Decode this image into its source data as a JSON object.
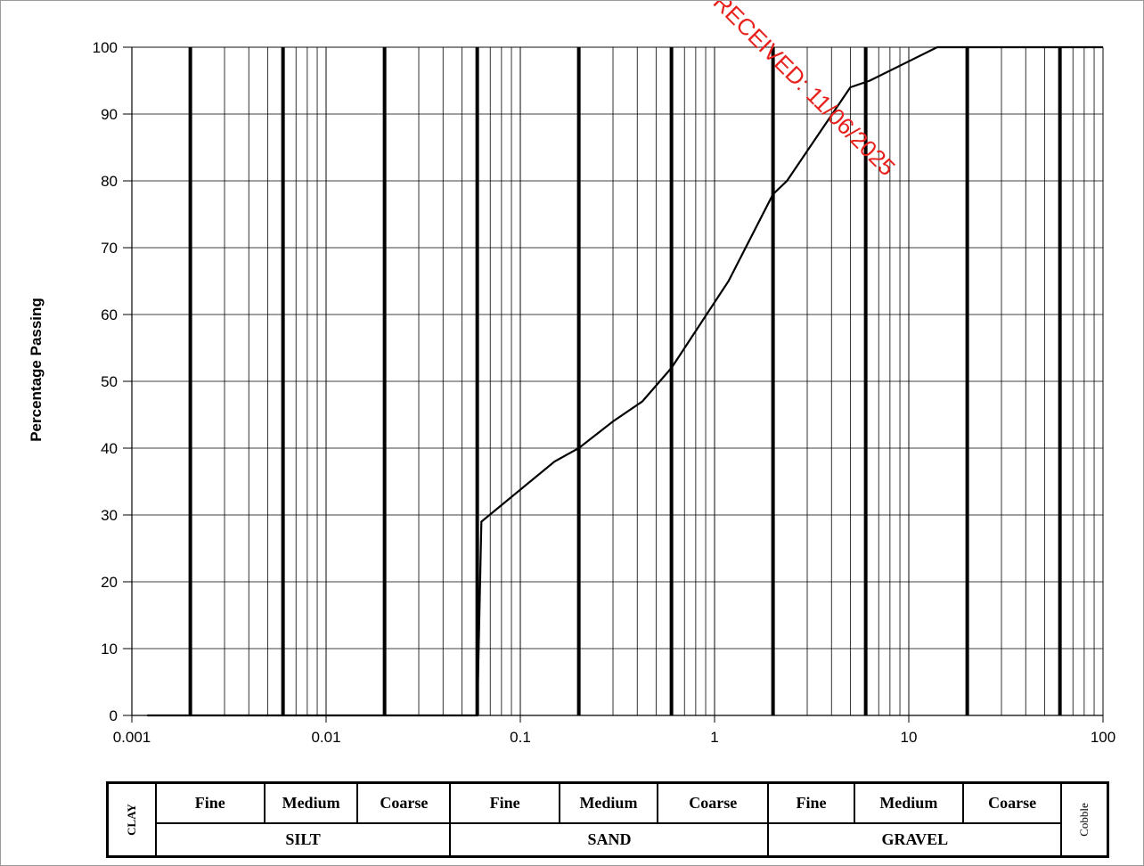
{
  "chart_data": {
    "type": "line",
    "title": "",
    "xlabel": "",
    "ylabel": "Percentage  Passing",
    "x_scale": "log",
    "xlim": [
      0.001,
      100
    ],
    "ylim": [
      0,
      100
    ],
    "x_ticks": [
      "0.001",
      "0.01",
      "0.1",
      "1",
      "10",
      "100"
    ],
    "y_ticks": [
      "0",
      "10",
      "20",
      "30",
      "40",
      "50",
      "60",
      "70",
      "80",
      "90",
      "100"
    ],
    "grid": true,
    "boundaries": [
      0.002,
      0.006,
      0.02,
      0.06,
      0.2,
      0.6,
      2,
      6,
      20,
      60
    ],
    "series": [
      {
        "x": [
          0.0012,
          0.06,
          0.063,
          0.15,
          0.2,
          0.3,
          0.425,
          0.6,
          1.18,
          2,
          2.36,
          5,
          6.3,
          14,
          20,
          37.5,
          63,
          100
        ],
        "y": [
          0,
          0,
          29,
          38,
          40,
          44,
          47,
          52,
          65,
          78,
          80,
          94,
          95,
          100,
          100,
          100,
          100,
          100
        ]
      }
    ],
    "annotation": "RECEIVED: 11/06/2025"
  },
  "classification": {
    "clay": "CLAY",
    "cobble": "Cobble",
    "groups": [
      {
        "name": "SILT",
        "subs": [
          "Fine",
          "Medium",
          "Coarse"
        ]
      },
      {
        "name": "SAND",
        "subs": [
          "Fine",
          "Medium",
          "Coarse"
        ]
      },
      {
        "name": "GRAVEL",
        "subs": [
          "Fine",
          "Medium",
          "Coarse"
        ]
      }
    ]
  },
  "colors": {
    "line": "#000000",
    "grid": "#000000",
    "stamp": "#e8201c"
  }
}
